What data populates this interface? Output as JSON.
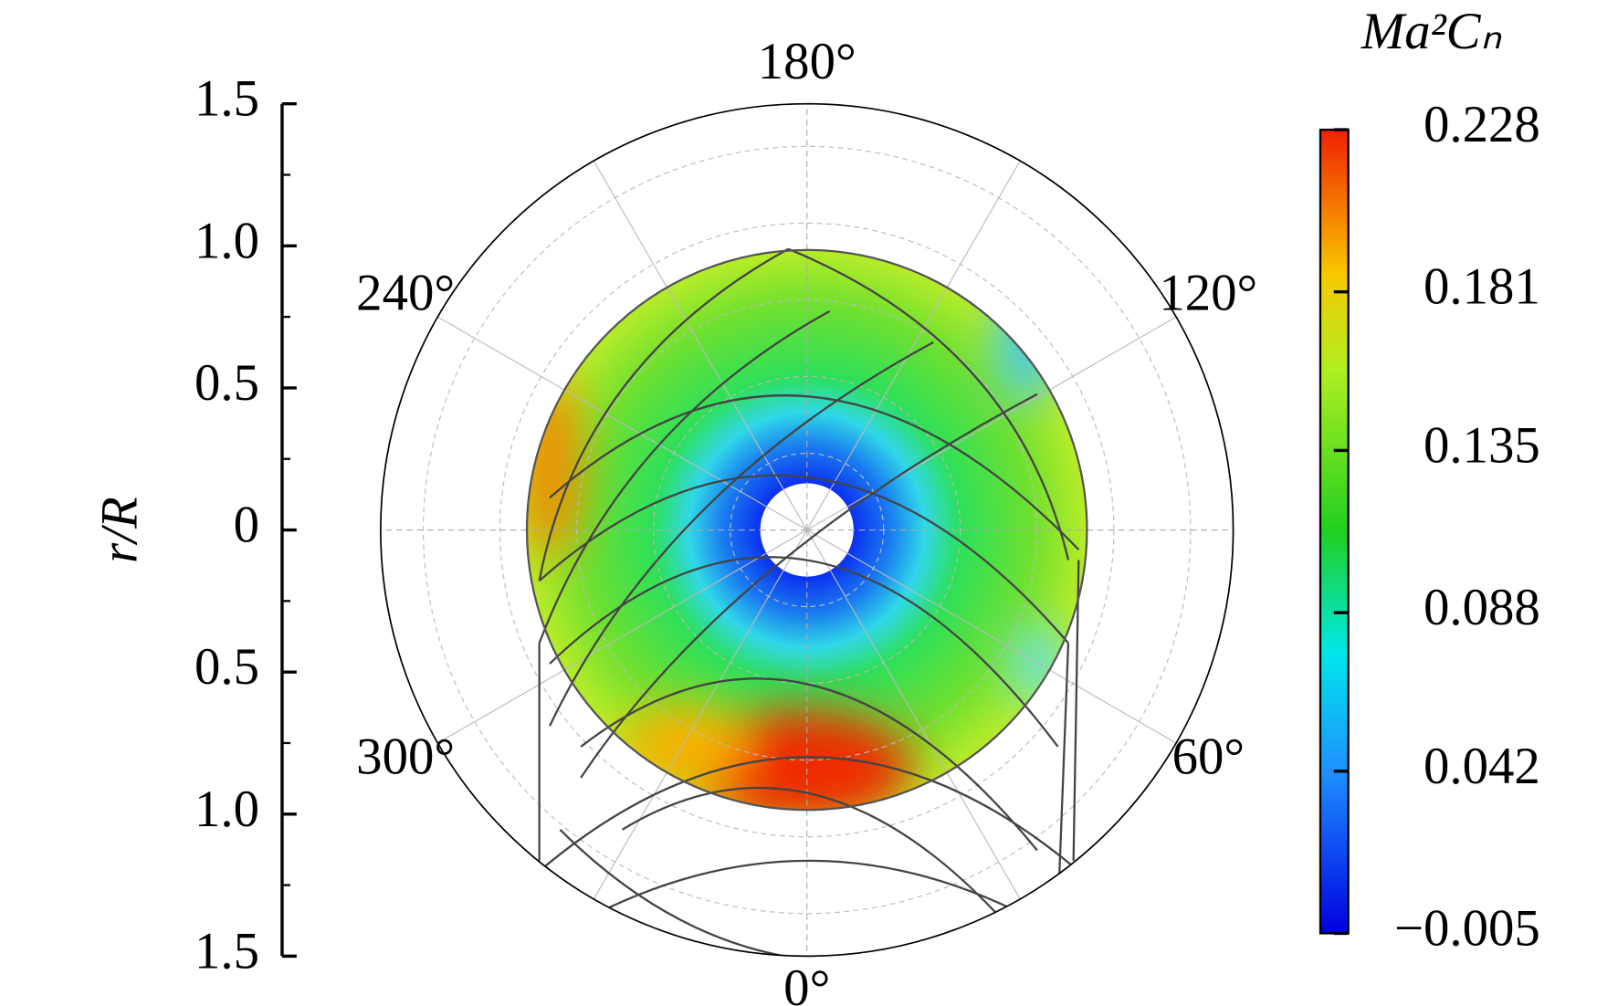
{
  "chart_data": {
    "type": "polar-contour",
    "y_label": "r/R",
    "ylim": [
      -1.5,
      1.5
    ],
    "yticks": [
      {
        "value": 1.5,
        "label": "1.5"
      },
      {
        "value": 1,
        "label": "1.0"
      },
      {
        "value": 0.5,
        "label": "0.5"
      },
      0,
      {
        "value": -0.5,
        "label": "0.5"
      },
      {
        "value": -1,
        "label": "1.0"
      },
      {
        "value": -1.5,
        "label": "1.5"
      }
    ],
    "angle_ticks": [
      {
        "value": 0,
        "label": "0°"
      },
      {
        "value": 60,
        "label": "60°"
      },
      {
        "value": 120,
        "label": "120°"
      },
      {
        "value": 180,
        "label": "180°"
      },
      {
        "value": 240,
        "label": "240°"
      },
      {
        "value": 300,
        "label": "300°"
      }
    ],
    "colorbar_title": "Ma²Cₙ",
    "clim": [
      -0.005,
      0.228
    ],
    "cticks": [
      0.228,
      0.181,
      0.135,
      0.088,
      0.042,
      {
        "value": -0.005,
        "label": "−0.005"
      }
    ]
  }
}
